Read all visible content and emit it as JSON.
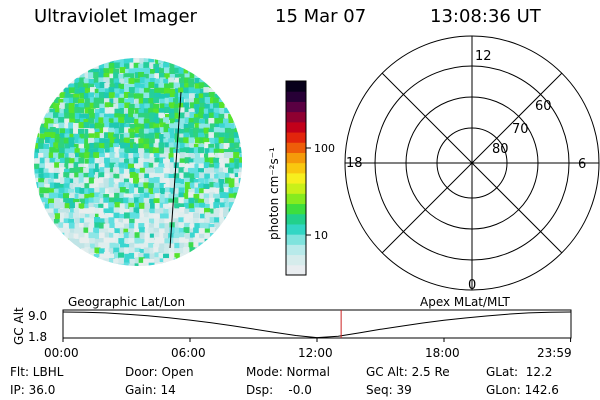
{
  "header": {
    "instrument": "Ultraviolet Imager",
    "date": "15 Mar 07",
    "time": "13:08:36 UT"
  },
  "colorbar": {
    "unit_label": "photon cm⁻²s⁻¹",
    "tick_labels": [
      "10",
      "100"
    ],
    "colors": [
      "#e9edf0",
      "#d6ecec",
      "#b8eaea",
      "#7fe3dd",
      "#33d6c4",
      "#22d08b",
      "#3ede3e",
      "#86eb1f",
      "#c9f019",
      "#f7ef1e",
      "#f9c80f",
      "#f59a0a",
      "#ee5d09",
      "#e2250c",
      "#c2001a",
      "#8f0031",
      "#5a0042",
      "#270036",
      "#07001a"
    ]
  },
  "polar": {
    "mlt_labels": [
      "12",
      "18",
      "6",
      "0"
    ],
    "lat_labels": [
      "60",
      "70",
      "80"
    ]
  },
  "orbit": {
    "left_label": "Geographic Lat/Lon",
    "right_label": "Apex  MLat/MLT",
    "y_axis_label": "GC Alt",
    "y_ticks": [
      "9.0",
      "1.8"
    ],
    "x_ticks": [
      "00:00",
      "06:00",
      "12:00",
      "18:00",
      "23:59"
    ],
    "current_time_hours": 13.14
  },
  "status": {
    "flt": "Flt: LBHL",
    "ip": "IP: 36.0",
    "door": "Door: Open",
    "gain": "Gain: 14",
    "mode": "Mode: Normal",
    "dsp": "Dsp:    -0.0",
    "gc_alt": "GC Alt: 2.5 Re",
    "seq": "Seq: 39",
    "glat": "GLat:  12.2",
    "glon": "GLon: 142.6"
  },
  "chart_data": {
    "type": "line",
    "title": "",
    "xlabel": "",
    "ylabel": "GC Alt",
    "x": [
      0,
      1,
      2,
      3,
      4,
      5,
      6,
      7,
      8,
      9,
      10,
      11,
      12,
      13,
      14,
      15,
      16,
      17,
      18,
      19,
      20,
      21,
      22,
      23,
      23.98
    ],
    "series": [
      {
        "values": [
          9.0,
          8.95,
          8.75,
          8.4,
          7.95,
          7.4,
          6.75,
          6.05,
          5.2,
          4.3,
          3.35,
          2.5,
          1.9,
          2.3,
          3.2,
          4.2,
          5.1,
          5.95,
          6.7,
          7.35,
          7.9,
          8.4,
          8.75,
          8.95,
          9.0
        ]
      }
    ],
    "xlim": [
      0,
      24
    ],
    "ylim": [
      1.8,
      9.0
    ],
    "grid": false
  }
}
